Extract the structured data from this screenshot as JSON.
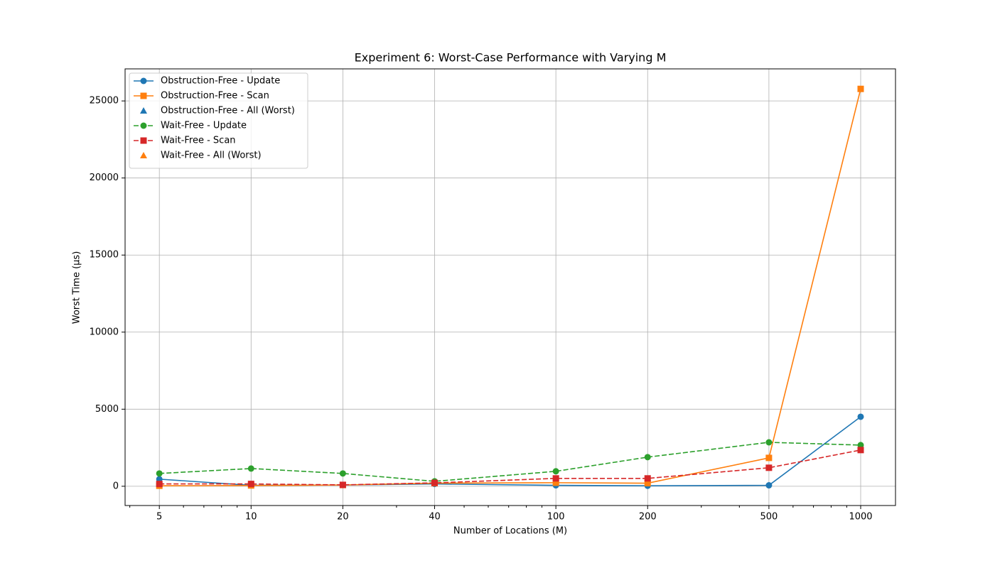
{
  "chart_data": {
    "type": "line",
    "title": "Experiment 6: Worst-Case Performance with Varying M",
    "x_label": "Number of Locations (M)",
    "y_label": "Worst Time (µs)",
    "x": [
      5,
      10,
      20,
      40,
      100,
      200,
      500,
      1000
    ],
    "x_scale": "log",
    "xlim": [
      3.86,
      1301
    ],
    "xticks": [
      5,
      10,
      20,
      40,
      100,
      200,
      500,
      1000
    ],
    "xminorticks": [
      4,
      6,
      7,
      8,
      9,
      30,
      50,
      60,
      70,
      80,
      90,
      300,
      400,
      600,
      700,
      800,
      900
    ],
    "ylim": [
      -1250,
      27080
    ],
    "yticks": [
      0,
      5000,
      10000,
      15000,
      20000,
      25000
    ],
    "grid": true,
    "legend": "upper left",
    "series": [
      {
        "name": "Obstruction-Free - Update",
        "color": "#1f77b4",
        "marker": "circle",
        "linestyle": "solid",
        "values": [
          460,
          60,
          80,
          150,
          60,
          30,
          60,
          4510
        ]
      },
      {
        "name": "Obstruction-Free - Scan",
        "color": "#ff7f0e",
        "marker": "square",
        "linestyle": "solid",
        "values": [
          30,
          50,
          80,
          200,
          230,
          200,
          1840,
          25780
        ]
      },
      {
        "name": "Obstruction-Free - All (Worst)",
        "color": "#1f77b4",
        "marker": "triangle",
        "linestyle": "none",
        "values": [
          null,
          null,
          null,
          null,
          null,
          null,
          null,
          null
        ]
      },
      {
        "name": "Wait-Free - Update",
        "color": "#2ca02c",
        "marker": "circle",
        "linestyle": "dashed",
        "values": [
          830,
          1150,
          830,
          320,
          970,
          1890,
          2850,
          2670
        ]
      },
      {
        "name": "Wait-Free - Scan",
        "color": "#d62728",
        "marker": "square",
        "linestyle": "dashed",
        "values": [
          150,
          150,
          90,
          220,
          510,
          510,
          1200,
          2350
        ]
      },
      {
        "name": "Wait-Free - All (Worst)",
        "color": "#ff7f0e",
        "marker": "triangle",
        "linestyle": "none",
        "values": [
          null,
          null,
          null,
          null,
          null,
          null,
          null,
          null
        ]
      }
    ]
  }
}
